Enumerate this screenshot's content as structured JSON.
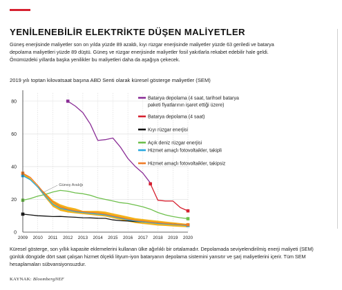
{
  "header": {
    "title": "YENİLENEBİLİR ELEKTRİKTE DÜŞEN MALİYETLER",
    "intro": "Güneş enerjisinde maliyetler son on yılda yüzde 89 azaldı, kıyı rüzgar enerjisinde maliyetler yüzde 63 geriledi ve batarya depolama maliyetleri yüzde 89 düştü. Güneş ve rüzgar enerjisinde maliyetler fosil yakıtlarla rekabet edebilir hale geldi. Önümüzdeki yıllarda başka yenilikler bu maliyetleri daha da aşağıya çekecek.",
    "subtitle": "2019 yılı toptan kilovatsaat başına ABD Senti olarak küresel gösterge maliyetler (SEM)"
  },
  "footer": {
    "note": "Küresel gösterge, son yıllık kapasite eklemelerini kullanan ülke ağırlıklı bir ortalamadır. Depolamada seviyelendirilmiş enerji maliyeti (SEM) günlük döngüde dört saat çalışan hizmet ölçekli lityum-iyon bataryanın depolama sistemini yansıtır ve şarj maliyetlerini içerir. Tüm SEM hesaplamaları sübvansiyonsuzdur.",
    "source_label": "KAYNAK:",
    "source_name": "BloombergNEF"
  },
  "chart_data": {
    "type": "line",
    "xlim": [
      2009,
      2020
    ],
    "ylim": [
      0,
      85
    ],
    "x_ticks": [
      "2009",
      "2010",
      "2011",
      "2012",
      "2013",
      "2014",
      "2015",
      "2016",
      "2017",
      "2018",
      "2019",
      "2020"
    ],
    "y_ticks": [
      "0",
      "20",
      "40",
      "60",
      "80"
    ],
    "grid": "horizontal",
    "legend_position": "right",
    "band": {
      "label": "Güneş Aralığı",
      "color": "#f2b21b",
      "x": [
        2009,
        2009.5,
        2010,
        2010.5,
        2011,
        2011.5,
        2012,
        2012.5,
        2013,
        2013.5,
        2014,
        2014.5,
        2015,
        2015.5,
        2016,
        2016.5,
        2017,
        2017.5,
        2018,
        2018.5,
        2019,
        2019.5,
        2020
      ],
      "upper": [
        36.5,
        33,
        28,
        24,
        19.5,
        17,
        15.5,
        14.5,
        13,
        13,
        13,
        12.5,
        11.5,
        10.5,
        9.5,
        8.5,
        8,
        7.5,
        7,
        6.5,
        6,
        5.5,
        5
      ],
      "lower": [
        34.5,
        32,
        27,
        21,
        15.5,
        13,
        12,
        11.5,
        11,
        10.5,
        10,
        9.5,
        8.5,
        7.5,
        6.5,
        5.5,
        5,
        4.5,
        4,
        3.8,
        3.5,
        3.2,
        3
      ]
    },
    "series": [
      {
        "name": "Batarya depolama (4 saat, tarihsel batarya paketi fiyatlarının işaret ettiği üzere)",
        "color": "#8a2d96",
        "end_marker": "start",
        "x": [
          2012,
          2012.5,
          2013,
          2013.5,
          2014,
          2014.5,
          2015,
          2015.5,
          2016,
          2016.5,
          2017,
          2017.5
        ],
        "y": [
          80,
          77,
          73,
          66,
          56,
          56.5,
          57.5,
          52,
          45,
          40,
          36,
          30
        ]
      },
      {
        "name": "Batarya depolama (4 saat)",
        "color": "#d6202f",
        "end_marker": "both",
        "x": [
          2017.5,
          2018,
          2018.5,
          2019,
          2019.5,
          2020
        ],
        "y": [
          29.5,
          19.5,
          19,
          19,
          15,
          13
        ]
      },
      {
        "name": "Kıyı rüzgar enerjisi",
        "color": "#111111",
        "end_marker": "both",
        "x": [
          2009,
          2009.5,
          2010,
          2010.5,
          2011,
          2011.5,
          2012,
          2012.5,
          2013,
          2013.5,
          2014,
          2014.5,
          2015,
          2015.5,
          2016,
          2016.5,
          2017,
          2017.5,
          2018,
          2018.5,
          2019,
          2019.5,
          2020
        ],
        "y": [
          11,
          10.5,
          10,
          9.8,
          9.5,
          9.6,
          9.3,
          9.1,
          8.8,
          8.7,
          8.5,
          8.4,
          7.5,
          7,
          6.8,
          6.5,
          6.3,
          6,
          5.5,
          5.2,
          5,
          4.6,
          4.2
        ]
      },
      {
        "name": "Açık deniz rüzgar enerjisi",
        "color": "#6dbf4b",
        "end_marker": "both",
        "x": [
          2009,
          2009.5,
          2010,
          2010.5,
          2011,
          2011.5,
          2012,
          2012.5,
          2013,
          2013.5,
          2014,
          2014.5,
          2015,
          2015.5,
          2016,
          2016.5,
          2017,
          2017.5,
          2018,
          2018.5,
          2019,
          2019.5,
          2020
        ],
        "y": [
          19.5,
          20.5,
          22,
          23,
          24.5,
          25.5,
          25,
          24,
          23.5,
          22.5,
          21,
          20,
          19,
          18,
          17.5,
          16.5,
          15.5,
          14,
          12,
          10.5,
          9.5,
          8.8,
          8.2
        ]
      },
      {
        "name": "Hizmet amaçlı fotovoltaikler, takipli",
        "color": "#2aa9e0",
        "end_marker": "both",
        "x": [
          2009,
          2009.5,
          2010,
          2010.5,
          2011,
          2011.5,
          2012,
          2012.5,
          2013,
          2013.5,
          2014,
          2014.5,
          2015,
          2015.5,
          2016,
          2016.5,
          2017,
          2017.5,
          2018,
          2018.5,
          2019,
          2019.5,
          2020
        ],
        "y": [
          34.5,
          32,
          27.5,
          22,
          17,
          14.5,
          13.5,
          12.5,
          12,
          11.5,
          11,
          10.5,
          9.5,
          8.5,
          7.5,
          6.8,
          6.3,
          5.8,
          5.3,
          5,
          4.7,
          4.4,
          4
        ]
      },
      {
        "name": "Hizmet amaçlı fotovoltaikler, takipsiz",
        "color": "#f07c27",
        "end_marker": "both",
        "x": [
          2009,
          2009.5,
          2010,
          2010.5,
          2011,
          2011.5,
          2012,
          2012.5,
          2013,
          2013.5,
          2014,
          2014.5,
          2015,
          2015.5,
          2016,
          2016.5,
          2017,
          2017.5,
          2018,
          2018.5,
          2019,
          2019.5,
          2020
        ],
        "y": [
          36,
          33.5,
          28.5,
          23,
          18.5,
          15.5,
          14,
          13,
          12.5,
          12,
          11.8,
          11,
          10,
          9,
          8,
          7.2,
          6.8,
          6.2,
          5.8,
          5.4,
          5,
          4.7,
          4.5
        ]
      }
    ]
  }
}
